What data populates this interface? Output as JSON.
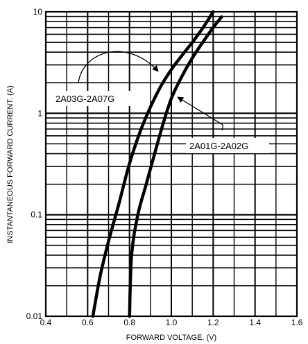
{
  "chart_data": {
    "type": "line",
    "xlabel": "FORWARD VOLTAGE. (V)",
    "ylabel": "INSTANTANEOUS FORWARD CURRENT. (A)",
    "xlim": [
      0.4,
      1.6
    ],
    "ylim": [
      0.01,
      10
    ],
    "yscale": "log",
    "x_ticks": [
      "0.4",
      "0.6",
      "0.8",
      "1.0",
      "1.2",
      "1.4",
      "1.6"
    ],
    "y_ticks": [
      "0.01",
      "0.1",
      "1",
      "10"
    ],
    "grid": true,
    "series": [
      {
        "name": "2A03G-2A07G",
        "x": [
          0.625,
          0.66,
          0.7,
          0.75,
          0.8,
          0.85,
          0.9,
          0.95,
          1.0,
          1.05,
          1.1,
          1.15,
          1.2
        ],
        "y": [
          0.01,
          0.025,
          0.055,
          0.13,
          0.32,
          0.65,
          1.15,
          1.85,
          2.7,
          3.7,
          5.0,
          6.9,
          10.0
        ]
      },
      {
        "name": "2A01G-2A02G",
        "x": [
          0.8,
          0.81,
          0.84,
          0.88,
          0.92,
          0.96,
          1.0,
          1.05,
          1.1,
          1.15,
          1.2,
          1.24
        ],
        "y": [
          0.01,
          0.04,
          0.1,
          0.2,
          0.4,
          0.78,
          1.4,
          2.3,
          3.5,
          5.0,
          7.0,
          8.9
        ]
      }
    ],
    "annotations": [
      {
        "text": "2A03G-2A07G",
        "target_series": 0
      },
      {
        "text": "2A01G-2A02G",
        "target_series": 1
      }
    ]
  }
}
